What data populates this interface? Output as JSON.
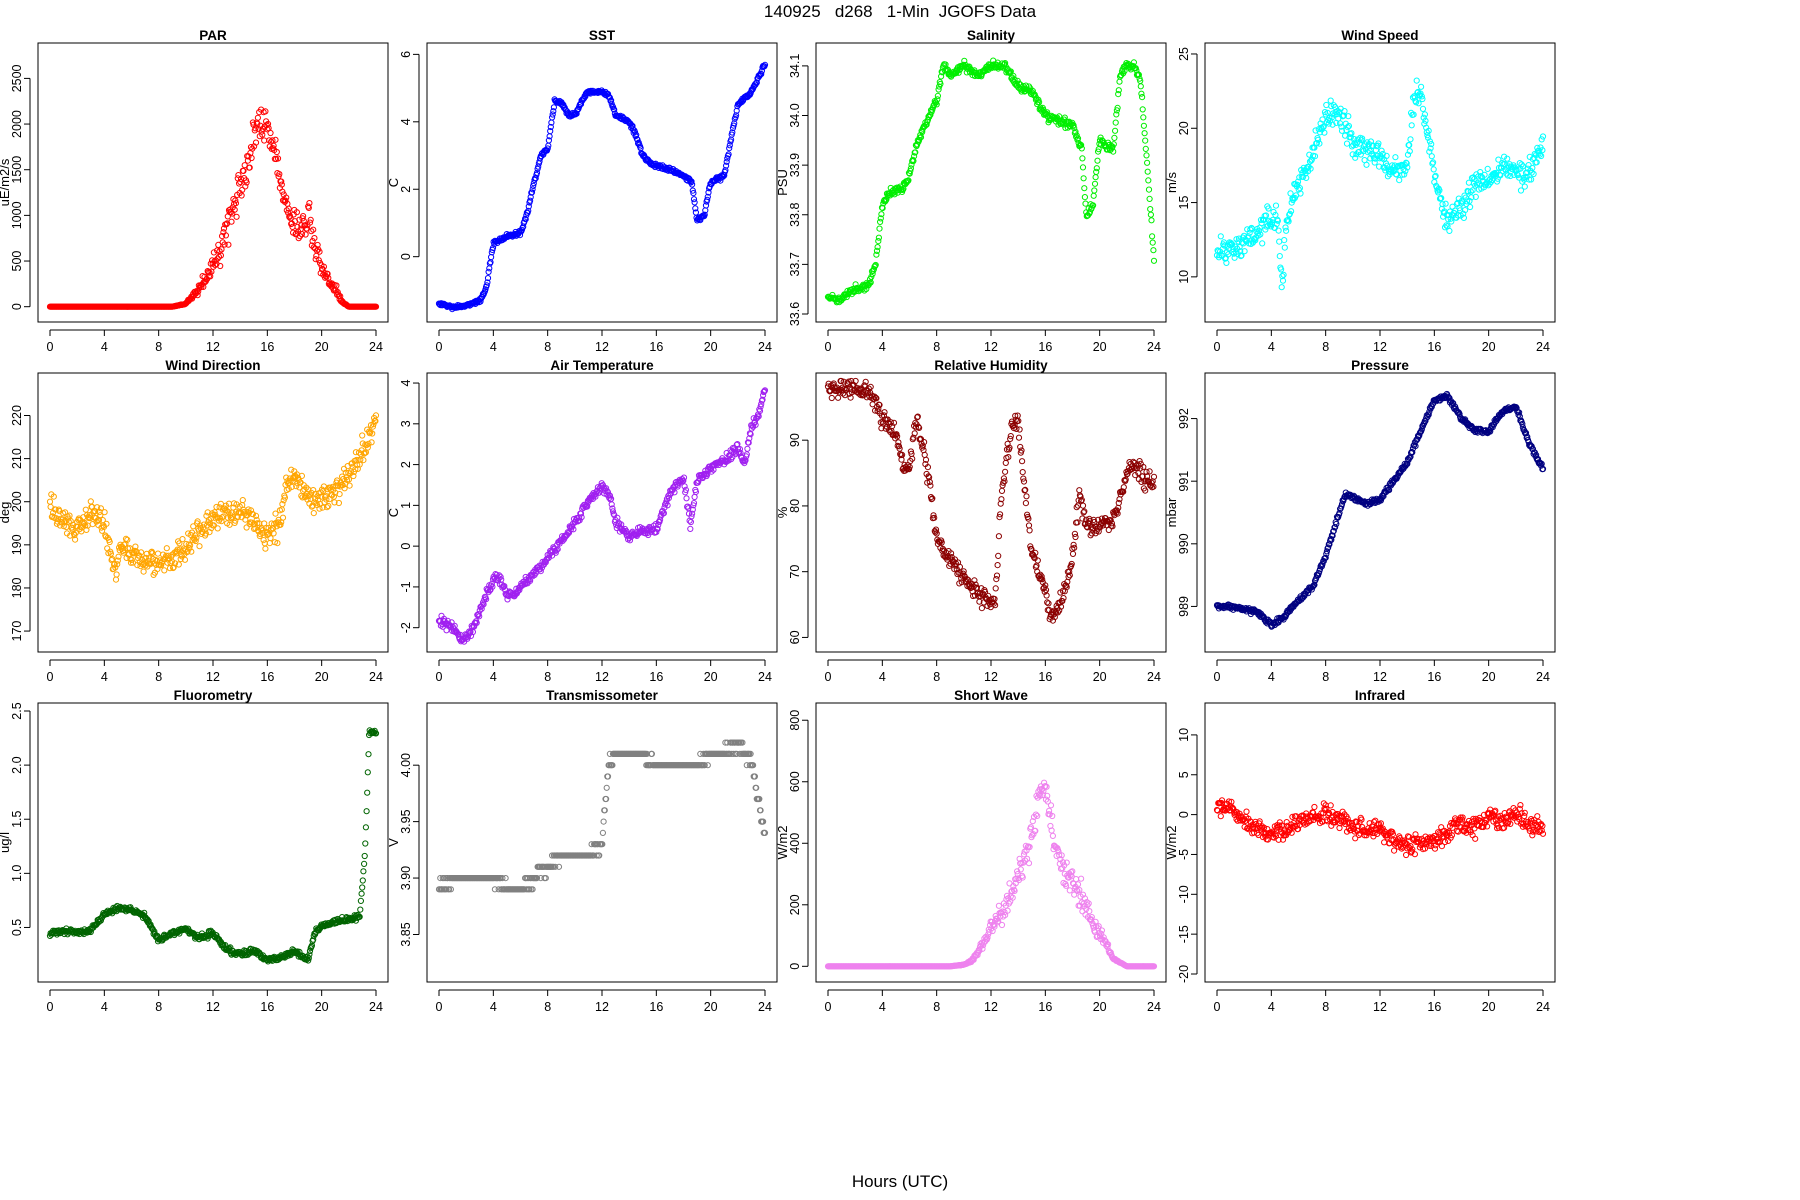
{
  "figure": {
    "title": "140925   d268   1-Min  JGOFS Data",
    "xlabel": "Hours (UTC)"
  },
  "chart_data": [
    {
      "type": "scatter",
      "title": "PAR",
      "ylabel": "uE/m2/s",
      "color": "#ff0000",
      "xlim": [
        0,
        24
      ],
      "ylim": [
        -80,
        2800
      ],
      "xticks": [
        0,
        4,
        8,
        12,
        16,
        20,
        24
      ],
      "yticks": [
        0,
        500,
        1000,
        1500,
        2000,
        2500
      ],
      "noise": 180,
      "seed": 1,
      "x": [
        0,
        9,
        10,
        11,
        11.5,
        12,
        12.5,
        13,
        13.5,
        14,
        14.5,
        15,
        15.5,
        16,
        16.5,
        17,
        17.5,
        18,
        18.5,
        19,
        19.5,
        20,
        20.5,
        21,
        21.5,
        22,
        23,
        24
      ],
      "y": [
        0,
        0,
        30,
        200,
        300,
        450,
        600,
        800,
        1100,
        1300,
        1500,
        1900,
        2000,
        1950,
        1700,
        1300,
        1100,
        900,
        850,
        1000,
        700,
        400,
        300,
        200,
        50,
        0,
        0,
        0
      ]
    },
    {
      "type": "scatter",
      "title": "SST",
      "ylabel": "C",
      "color": "#0000ff",
      "xlim": [
        0,
        24
      ],
      "ylim": [
        -1.7,
        6.1
      ],
      "xticks": [
        0,
        4,
        8,
        12,
        16,
        20,
        24
      ],
      "yticks": [
        0,
        2,
        4,
        6
      ],
      "noise": 0.06,
      "seed": 2,
      "x": [
        0,
        1,
        2,
        3,
        3.5,
        4,
        5,
        6,
        6.5,
        7,
        7.5,
        8,
        8.5,
        9,
        9.5,
        10,
        10.5,
        11,
        12,
        12.5,
        13,
        14,
        14.5,
        15,
        15.5,
        16,
        17,
        18,
        18.6,
        19,
        19.5,
        20,
        21,
        21.5,
        22,
        23,
        24
      ],
      "y": [
        -1.4,
        -1.5,
        -1.45,
        -1.3,
        -0.9,
        0.4,
        0.6,
        0.7,
        1.3,
        2.2,
        3.0,
        3.2,
        4.6,
        4.6,
        4.2,
        4.2,
        4.6,
        4.9,
        4.9,
        4.8,
        4.2,
        4.0,
        3.6,
        3.0,
        2.8,
        2.7,
        2.6,
        2.4,
        2.2,
        1.1,
        1.2,
        2.2,
        2.4,
        3.5,
        4.5,
        4.9,
        5.7
      ]
    },
    {
      "type": "scatter",
      "title": "Salinity",
      "ylabel": "PSU",
      "color": "#00ee00",
      "xlim": [
        0,
        24
      ],
      "ylim": [
        33.6,
        34.13
      ],
      "xticks": [
        0,
        4,
        8,
        12,
        16,
        20,
        24
      ],
      "yticks": [
        33.6,
        33.7,
        33.8,
        33.9,
        34.0,
        34.1
      ],
      "noise": 0.008,
      "seed": 3,
      "x": [
        0,
        1,
        2,
        3,
        3.5,
        4,
        4.5,
        5,
        5.5,
        6,
        6.5,
        7,
        7.5,
        8,
        8.5,
        9,
        10,
        11,
        12,
        13,
        14,
        15,
        16,
        17,
        18,
        18.7,
        19,
        19.5,
        20,
        21,
        21.5,
        22,
        22.5,
        23,
        23.5,
        24
      ],
      "y": [
        33.63,
        33.63,
        33.65,
        33.66,
        33.7,
        33.82,
        33.84,
        33.85,
        33.85,
        33.88,
        33.94,
        33.97,
        34.0,
        34.03,
        34.1,
        34.08,
        34.1,
        34.08,
        34.1,
        34.1,
        34.06,
        34.05,
        34.0,
        33.99,
        33.98,
        33.93,
        33.8,
        33.82,
        33.95,
        33.93,
        34.08,
        34.1,
        34.1,
        34.07,
        33.9,
        33.71
      ]
    },
    {
      "type": "scatter",
      "title": "Wind Speed",
      "ylabel": "m/s",
      "color": "#00ffff",
      "xlim": [
        0,
        24
      ],
      "ylim": [
        7.5,
        25.2
      ],
      "xticks": [
        0,
        4,
        8,
        12,
        16,
        20,
        24
      ],
      "yticks": [
        10,
        15,
        20,
        25
      ],
      "noise": 0.9,
      "seed": 4,
      "x": [
        0,
        1,
        2,
        3,
        4,
        4.5,
        4.8,
        5.2,
        6,
        7,
        8,
        9,
        10,
        11,
        12,
        13,
        14,
        14.5,
        15,
        16,
        16.5,
        17,
        18,
        19,
        20,
        21,
        22,
        23,
        24
      ],
      "y": [
        11.5,
        12,
        12.5,
        13,
        14,
        13.5,
        9.5,
        14.5,
        16,
        18,
        21,
        21,
        19,
        18.5,
        18,
        17,
        17.5,
        22,
        22.5,
        17,
        15,
        14,
        14.5,
        16.5,
        16.5,
        17.5,
        17,
        17,
        19
      ]
    },
    {
      "type": "scatter",
      "title": "Wind Direction",
      "ylabel": "deg",
      "color": "#ffa500",
      "xlim": [
        0,
        24
      ],
      "ylim": [
        167,
        228
      ],
      "xticks": [
        0,
        4,
        8,
        12,
        16,
        20,
        24
      ],
      "yticks": [
        170,
        180,
        190,
        200,
        210,
        220
      ],
      "noise": 3,
      "seed": 5,
      "x": [
        0,
        1,
        2,
        3,
        4,
        4.8,
        5.2,
        6,
        7,
        8,
        9,
        10,
        11,
        12,
        13,
        14,
        15,
        16,
        17,
        17.5,
        18,
        19,
        20,
        21,
        22,
        23,
        24
      ],
      "y": [
        199,
        195,
        194,
        197,
        195,
        183,
        190,
        188,
        186,
        186,
        187,
        189,
        193,
        197,
        197,
        198,
        196,
        191,
        196,
        204,
        206,
        201,
        200,
        203,
        205,
        212,
        219
      ]
    },
    {
      "type": "scatter",
      "title": "Air Temperature",
      "ylabel": "C",
      "color": "#a020f0",
      "xlim": [
        0,
        24
      ],
      "ylim": [
        -2.4,
        4.05
      ],
      "xticks": [
        0,
        4,
        8,
        12,
        16,
        20,
        24
      ],
      "yticks": [
        -2,
        -1,
        0,
        1,
        2,
        3,
        4
      ],
      "noise": 0.12,
      "seed": 6,
      "x": [
        0,
        1,
        1.7,
        2.5,
        3,
        3.5,
        4,
        4.5,
        5,
        5.5,
        6,
        7,
        8,
        9,
        10,
        11,
        12,
        12.5,
        13,
        14,
        15,
        16,
        17,
        18,
        18.5,
        19,
        20,
        21,
        22,
        22.5,
        23,
        23.5,
        24
      ],
      "y": [
        -1.8,
        -2.0,
        -2.3,
        -2.0,
        -1.6,
        -1.2,
        -0.8,
        -0.8,
        -1.2,
        -1.2,
        -1.0,
        -0.7,
        -0.3,
        0.1,
        0.6,
        1.1,
        1.5,
        1.3,
        0.6,
        0.2,
        0.4,
        0.4,
        1.3,
        1.7,
        0.5,
        1.6,
        1.9,
        2.1,
        2.4,
        2.0,
        2.9,
        3.2,
        3.8
      ]
    },
    {
      "type": "scatter",
      "title": "Relative Humidity",
      "ylabel": "%",
      "color": "#8b0000",
      "xlim": [
        0,
        24
      ],
      "ylim": [
        59,
        99
      ],
      "xticks": [
        0,
        4,
        8,
        12,
        16,
        20,
        24
      ],
      "yticks": [
        60,
        70,
        80,
        90
      ],
      "noise": 1.4,
      "seed": 7,
      "x": [
        0,
        1,
        2,
        3,
        3.5,
        4,
        5,
        5.5,
        6,
        6.5,
        7,
        7.5,
        8,
        9,
        10,
        11,
        12,
        12.3,
        12.7,
        13,
        13.5,
        14,
        14.5,
        15,
        16,
        16.5,
        17,
        17.5,
        18,
        18.5,
        19,
        20,
        21,
        22,
        22.5,
        23,
        24
      ],
      "y": [
        98,
        98,
        98,
        97.5,
        96,
        93,
        91,
        86,
        86,
        93,
        89,
        83,
        75,
        72,
        69,
        67,
        65,
        65,
        80,
        85,
        92,
        93,
        82,
        73,
        67,
        63,
        65,
        68,
        72,
        82,
        77,
        77,
        78,
        85,
        86,
        85,
        83
      ]
    },
    {
      "type": "scatter",
      "title": "Pressure",
      "ylabel": "mbar",
      "color": "#000080",
      "xlim": [
        0,
        24
      ],
      "ylim": [
        988.4,
        992.6
      ],
      "xticks": [
        0,
        4,
        8,
        12,
        16,
        20,
        24
      ],
      "yticks": [
        989,
        990,
        991,
        992
      ],
      "noise": 0.04,
      "seed": 8,
      "x": [
        0,
        1,
        2,
        3,
        4,
        5,
        6,
        7,
        8,
        9,
        9.5,
        10,
        11,
        12,
        13,
        14,
        15,
        16,
        17,
        18,
        19,
        20,
        21,
        22,
        23,
        24
      ],
      "y": [
        989.0,
        989.0,
        988.95,
        988.9,
        988.7,
        988.85,
        989.1,
        989.3,
        989.8,
        990.5,
        990.8,
        990.75,
        990.65,
        990.7,
        991.0,
        991.3,
        991.8,
        992.3,
        992.35,
        992.0,
        991.8,
        991.8,
        992.1,
        992.2,
        991.6,
        991.2
      ]
    },
    {
      "type": "scatter",
      "title": "Fluorometry",
      "ylabel": "ug/l",
      "color": "#006400",
      "xlim": [
        0,
        24
      ],
      "ylim": [
        0.07,
        2.5
      ],
      "xticks": [
        0,
        4,
        8,
        12,
        16,
        20,
        24
      ],
      "yticks": [
        0.5,
        1.0,
        1.5,
        2.0,
        2.5
      ],
      "noise": 0.025,
      "seed": 9,
      "x": [
        0,
        1,
        2,
        3,
        4,
        5,
        6,
        7,
        8,
        9,
        10,
        11,
        12,
        13,
        14,
        15,
        16,
        17,
        18,
        19,
        19.5,
        20,
        21,
        22,
        22.8,
        23.2,
        23.5,
        24
      ],
      "y": [
        0.45,
        0.47,
        0.45,
        0.47,
        0.62,
        0.68,
        0.66,
        0.6,
        0.38,
        0.45,
        0.48,
        0.4,
        0.45,
        0.3,
        0.25,
        0.28,
        0.2,
        0.22,
        0.28,
        0.2,
        0.45,
        0.52,
        0.55,
        0.58,
        0.6,
        1.2,
        2.3,
        2.3
      ]
    },
    {
      "type": "scatter",
      "title": "Transmissometer",
      "ylabel": "V",
      "color": "#808080",
      "xlim": [
        0,
        24
      ],
      "ylim": [
        3.815,
        4.048
      ],
      "xticks": [
        0,
        4,
        8,
        12,
        16,
        20,
        24
      ],
      "yticks": [
        3.85,
        3.9,
        3.95,
        4.0
      ],
      "noise": 0,
      "jitter": 0.005,
      "quantum": 0.01,
      "seed": 10,
      "x": [
        0,
        1,
        2,
        3,
        4,
        5,
        6,
        7,
        8,
        9,
        10,
        11,
        12,
        12.5,
        13,
        14,
        15,
        16,
        17,
        18,
        19,
        20,
        21,
        22,
        23,
        24
      ],
      "y": [
        3.89,
        3.9,
        3.9,
        3.9,
        3.9,
        3.89,
        3.89,
        3.9,
        3.91,
        3.92,
        3.92,
        3.92,
        3.93,
        4.0,
        4.01,
        4.01,
        4.01,
        4.0,
        4.0,
        4.0,
        4.0,
        4.01,
        4.01,
        4.02,
        4.0,
        3.94
      ]
    },
    {
      "type": "scatter",
      "title": "Short Wave",
      "ylabel": "W/m2",
      "color": "#ee82ee",
      "xlim": [
        0,
        24
      ],
      "ylim": [
        -25,
        830
      ],
      "xticks": [
        0,
        4,
        8,
        12,
        16,
        20,
        24
      ],
      "yticks": [
        0,
        200,
        400,
        600,
        800
      ],
      "noise": 45,
      "seed": 11,
      "x": [
        0,
        9,
        10,
        10.5,
        11,
        11.5,
        12,
        12.5,
        13,
        13.5,
        14,
        14.5,
        15,
        15.5,
        16,
        16.5,
        17,
        17.5,
        18,
        18.5,
        19,
        19.5,
        20,
        20.5,
        21,
        22,
        24
      ],
      "y": [
        0,
        0,
        5,
        15,
        40,
        80,
        130,
        150,
        180,
        230,
        300,
        350,
        420,
        560,
        580,
        450,
        340,
        300,
        280,
        230,
        200,
        130,
        110,
        70,
        25,
        0,
        0
      ]
    },
    {
      "type": "scatter",
      "title": "Infrared",
      "ylabel": "W/m2",
      "color": "#ff0000",
      "xlim": [
        0,
        24
      ],
      "ylim": [
        -20,
        13
      ],
      "xticks": [
        0,
        4,
        8,
        12,
        16,
        20,
        24
      ],
      "yticks": [
        -20,
        -15,
        -10,
        -5,
        0,
        5,
        10
      ],
      "noise": 1.2,
      "seed": 12,
      "x": [
        0,
        1,
        2,
        3,
        4,
        5,
        6,
        7,
        8,
        9,
        10,
        11,
        12,
        13,
        14,
        15,
        16,
        17,
        18,
        19,
        20,
        21,
        22,
        23,
        24
      ],
      "y": [
        0.5,
        1.0,
        -1.0,
        -1.5,
        -2.5,
        -2.0,
        -1.0,
        0.0,
        0.0,
        -0.5,
        -1.5,
        -2.0,
        -1.5,
        -3.0,
        -4.0,
        -3.5,
        -3.0,
        -2.5,
        -1.0,
        -1.5,
        -0.5,
        -1.0,
        0.5,
        -1.5,
        -1.5
      ]
    }
  ]
}
